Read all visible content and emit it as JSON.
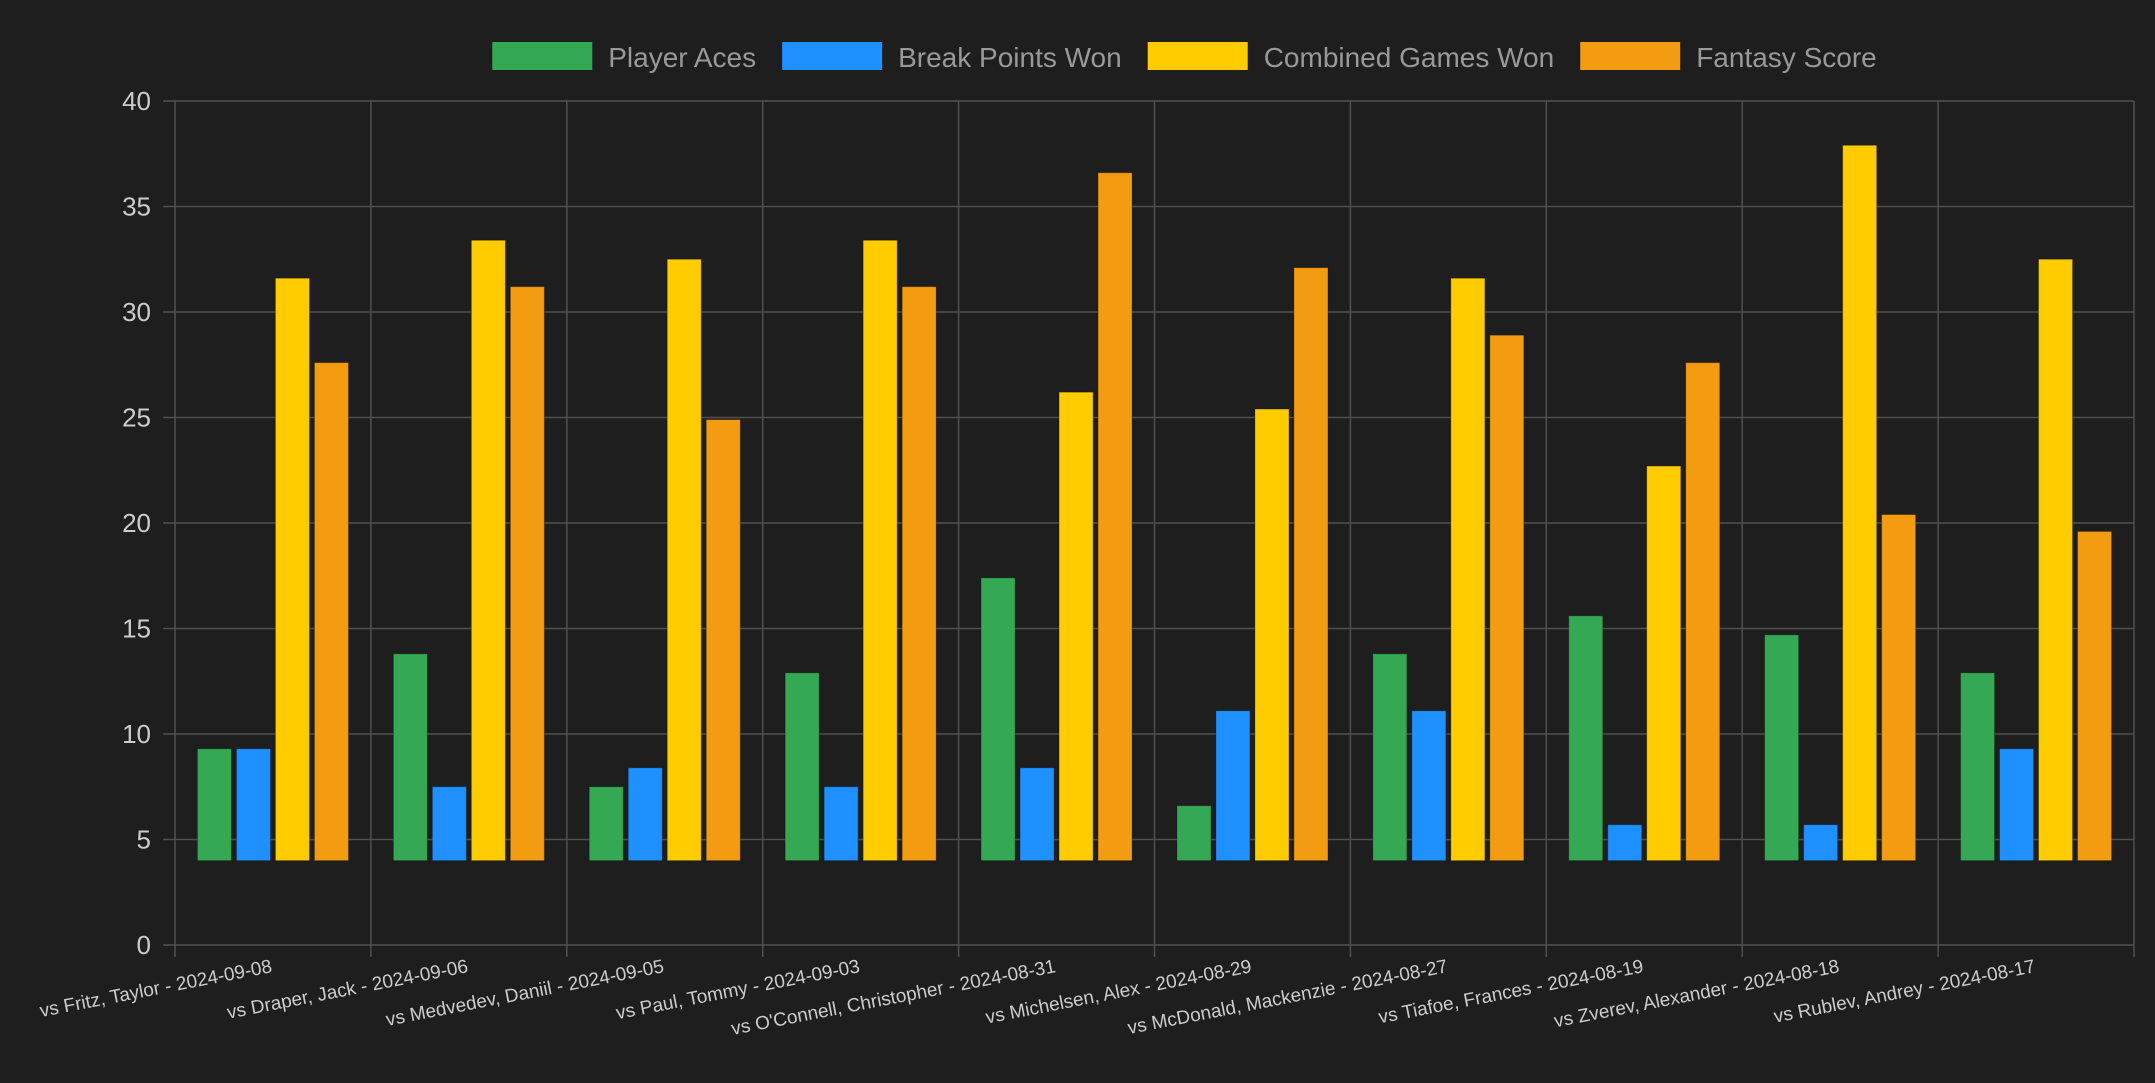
{
  "chart_data": {
    "type": "bar",
    "categories": [
      "vs Fritz, Taylor - 2024-09-08",
      "vs Draper, Jack - 2024-09-06",
      "vs Medvedev, Daniil - 2024-09-05",
      "vs Paul, Tommy - 2024-09-03",
      "vs O'Connell, Christopher - 2024-08-31",
      "vs Michelsen, Alex - 2024-08-29",
      "vs McDonald, Mackenzie - 2024-08-27",
      "vs Tiafoe, Frances - 2024-08-19",
      "vs Zverev, Alexander - 2024-08-18",
      "vs Rublev, Andrey - 2024-08-17"
    ],
    "series": [
      {
        "name": "Player Aces",
        "color": "#34a853",
        "values": [
          9.3,
          13.8,
          7.5,
          12.9,
          17.4,
          6.6,
          13.8,
          15.6,
          14.7,
          12.9
        ]
      },
      {
        "name": "Break Points Won",
        "color": "#1e90ff",
        "values": [
          9.3,
          7.5,
          8.4,
          7.5,
          8.4,
          11.1,
          11.1,
          5.7,
          5.7,
          9.3
        ]
      },
      {
        "name": "Combined Games Won",
        "color": "#ffcc00",
        "values": [
          31.6,
          33.4,
          32.5,
          33.4,
          26.2,
          25.4,
          31.6,
          22.7,
          37.9,
          32.5
        ]
      },
      {
        "name": "Fantasy Score",
        "color": "#f39c12",
        "values": [
          27.6,
          31.2,
          24.9,
          31.2,
          36.6,
          32.1,
          28.9,
          27.6,
          20.4,
          19.6
        ]
      }
    ],
    "bar_base": 4,
    "ylim": [
      0,
      40
    ],
    "yticks": [
      0,
      5,
      10,
      15,
      20,
      25,
      30,
      35,
      40
    ],
    "xlabel": "",
    "ylabel": "",
    "title": "",
    "grid": true,
    "legend_position": "top"
  },
  "colors": {
    "background": "#1e1e1e",
    "grid": "#505050",
    "axis_text": "#cccccc",
    "legend_text": "#999999"
  }
}
